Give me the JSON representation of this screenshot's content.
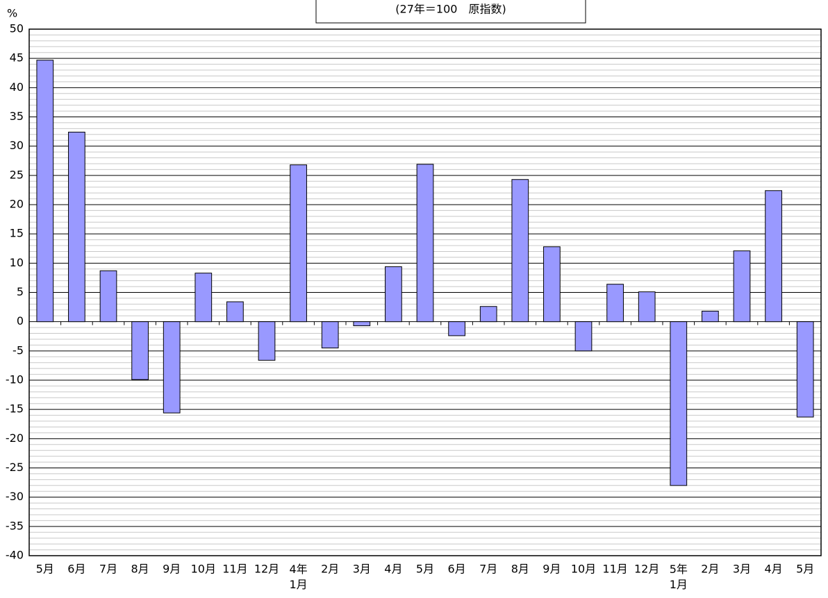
{
  "chart_data": {
    "type": "bar",
    "title": "(27年＝100　原指数)",
    "y_label": "%",
    "categories": [
      "5月",
      "6月",
      "7月",
      "8月",
      "9月",
      "10月",
      "11月",
      "12月",
      "4年\n1月",
      "2月",
      "3月",
      "4月",
      "5月",
      "6月",
      "7月",
      "8月",
      "9月",
      "10月",
      "11月",
      "12月",
      "5年\n1月",
      "2月",
      "3月",
      "4月",
      "5月"
    ],
    "values": [
      44.7,
      32.4,
      8.7,
      -9.9,
      -15.6,
      8.3,
      3.4,
      -6.6,
      26.8,
      -4.5,
      -0.7,
      9.4,
      26.9,
      -2.4,
      2.6,
      24.3,
      12.8,
      -5.0,
      6.4,
      5.1,
      -28.0,
      1.8,
      12.1,
      22.4,
      -16.3
    ],
    "color": "#9999ff",
    "ylim": [
      -40,
      50
    ],
    "yticks": [
      -40,
      -35,
      -30,
      -25,
      -20,
      -15,
      -10,
      -5,
      0,
      5,
      10,
      15,
      20,
      25,
      30,
      35,
      40,
      45,
      50
    ],
    "grid": true
  }
}
